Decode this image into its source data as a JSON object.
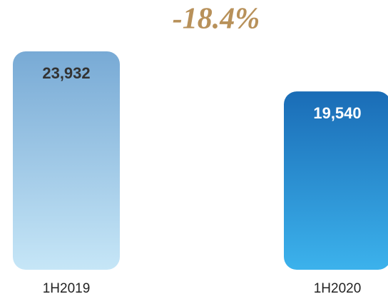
{
  "chart_data": {
    "type": "bar",
    "annotation": "-18.4%",
    "categories": [
      "1H2019",
      "1H2020"
    ],
    "values": [
      23932,
      19540
    ],
    "value_labels": [
      "23,932",
      "19,540"
    ],
    "colors": [
      [
        "#78aad5",
        "#c6e6f7"
      ],
      [
        "#1a6cb6",
        "#3cb2ec"
      ]
    ],
    "value_label_colors": [
      "#333333",
      "#ffffff"
    ]
  }
}
